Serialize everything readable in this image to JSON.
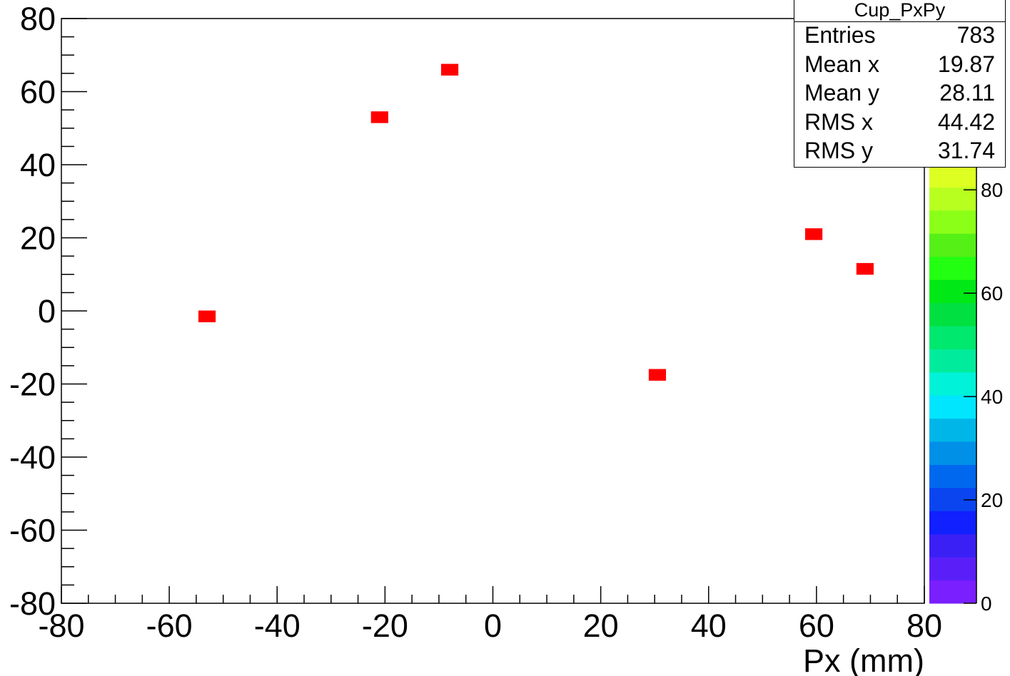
{
  "chart_data": {
    "type": "heatmap",
    "title": "",
    "xlabel": "Px (mm)",
    "ylabel": "",
    "xlim": [
      -80,
      80
    ],
    "ylim": [
      -80,
      80
    ],
    "x_ticks": [
      -80,
      -60,
      -40,
      -20,
      0,
      20,
      40,
      60,
      80
    ],
    "y_ticks": [
      -80,
      -60,
      -40,
      -20,
      0,
      20,
      40,
      60,
      80
    ],
    "points": [
      {
        "x": -53,
        "y": -1.5
      },
      {
        "x": -21,
        "y": 53
      },
      {
        "x": -8,
        "y": 66
      },
      {
        "x": 30.5,
        "y": -17.5
      },
      {
        "x": 59.5,
        "y": 21
      },
      {
        "x": 69,
        "y": 11.5
      }
    ],
    "point_color": "#ff0000",
    "colorbar": {
      "min": 0,
      "max": 85,
      "ticks": [
        0,
        20,
        40,
        60,
        80
      ],
      "colors": [
        "#7a1fff",
        "#5a1ff8",
        "#3a20f5",
        "#1020ff",
        "#0a45f0",
        "#0068ee",
        "#0090e8",
        "#00b6e8",
        "#00e6ff",
        "#00f2d8",
        "#00ec9c",
        "#00e86e",
        "#00e040",
        "#00e815",
        "#22ff10",
        "#55f015",
        "#8cff18",
        "#b8ff20",
        "#ddff22"
      ]
    }
  },
  "stats_box": {
    "title": "Cup_PxPy",
    "rows": [
      {
        "label": "Entries",
        "value": "783"
      },
      {
        "label": "Mean x",
        "value": "19.87"
      },
      {
        "label": "Mean y",
        "value": "28.11"
      },
      {
        "label": "RMS x",
        "value": "44.42"
      },
      {
        "label": "RMS y",
        "value": "31.74"
      }
    ]
  }
}
